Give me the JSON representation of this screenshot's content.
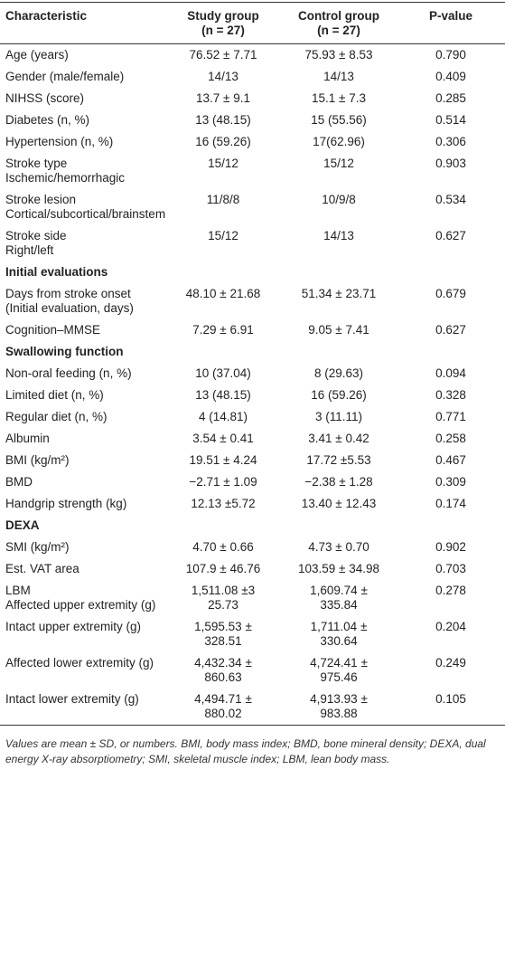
{
  "table": {
    "header": [
      {
        "name": "Characteristic"
      },
      {
        "name": "Study group",
        "n": "(n = 27)"
      },
      {
        "name": "Control group",
        "n": "(n = 27)"
      },
      {
        "name": "P-value"
      }
    ],
    "rows": [
      {
        "cells": [
          "Age (years)",
          "76.52 ± 7.71",
          "75.93 ± 8.53",
          "0.790"
        ]
      },
      {
        "cells": [
          "Gender (male/female)",
          "14/13",
          "14/13",
          "0.409"
        ]
      },
      {
        "cells": [
          "NIHSS (score)",
          "13.7 ± 9.1",
          "15.1 ± 7.3",
          "0.285"
        ]
      },
      {
        "cells": [
          "Diabetes (n, %)",
          "13 (48.15)",
          "15 (55.56)",
          "0.514"
        ]
      },
      {
        "cells": [
          "Hypertension (n, %)",
          "16 (59.26)",
          "17(62.96)",
          "0.306"
        ]
      },
      {
        "cells": [
          "Stroke type\nIschemic/hemorrhagic",
          "15/12",
          "15/12",
          "0.903"
        ]
      },
      {
        "cells": [
          "Stroke lesion\nCortical/subcortical/brainstem",
          "11/8/8",
          "10/9/8",
          "0.534"
        ]
      },
      {
        "cells": [
          "Stroke side\nRight/left",
          "15/12",
          "14/13",
          "0.627"
        ]
      },
      {
        "section": "Initial evaluations"
      },
      {
        "cells": [
          "Days from stroke onset (Initial evaluation, days)",
          "48.10 ± 21.68",
          "51.34 ± 23.71",
          "0.679"
        ]
      },
      {
        "cells": [
          "Cognition–MMSE",
          "7.29 ± 6.91",
          "9.05 ± 7.41",
          "0.627"
        ]
      },
      {
        "section": "Swallowing function"
      },
      {
        "cells": [
          "Non-oral feeding (n, %)",
          "10 (37.04)",
          "8 (29.63)",
          "0.094"
        ]
      },
      {
        "cells": [
          "Limited diet (n, %)",
          "13 (48.15)",
          "16 (59.26)",
          "0.328"
        ]
      },
      {
        "cells": [
          "Regular diet (n, %)",
          "4 (14.81)",
          "3 (11.11)",
          "0.771"
        ]
      },
      {
        "cells": [
          "Albumin",
          "3.54 ± 0.41",
          "3.41 ± 0.42",
          "0.258"
        ]
      },
      {
        "cells": [
          "BMI (kg/m²)",
          "19.51 ± 4.24",
          "17.72 ±5.53",
          "0.467"
        ]
      },
      {
        "cells": [
          "BMD",
          "−2.71 ± 1.09",
          "−2.38 ± 1.28",
          "0.309"
        ]
      },
      {
        "cells": [
          "Handgrip strength (kg)",
          "12.13 ±5.72",
          "13.40 ± 12.43",
          "0.174"
        ]
      },
      {
        "section": "DEXA"
      },
      {
        "cells": [
          "SMI (kg/m²)",
          "4.70 ± 0.66",
          "4.73 ± 0.70",
          "0.902"
        ]
      },
      {
        "cells": [
          "Est. VAT area",
          "107.9 ± 46.76",
          "103.59 ± 34.98",
          "0.703"
        ]
      },
      {
        "cells": [
          "LBM\nAffected upper extremity (g)",
          "1,511.08 ±3\n25.73",
          "1,609.74 ±\n335.84",
          "0.278"
        ]
      },
      {
        "cells": [
          "Intact upper extremity (g)",
          "1,595.53 ±\n328.51",
          "1,711.04 ±\n330.64",
          "0.204"
        ]
      },
      {
        "cells": [
          "Affected lower extremity (g)",
          "4,432.34 ±\n860.63",
          "4,724.41 ±\n975.46",
          "0.249"
        ]
      },
      {
        "cells": [
          "Intact lower extremity (g)",
          "4,494.71 ±\n880.02",
          "4,913.93 ±\n983.88",
          "0.105"
        ]
      }
    ],
    "footnote": "Values are mean ± SD, or numbers. BMI, body mass index; BMD, bone mineral density; DEXA, dual energy X-ray absorptiometry; SMI, skeletal muscle index; LBM, lean body mass."
  }
}
